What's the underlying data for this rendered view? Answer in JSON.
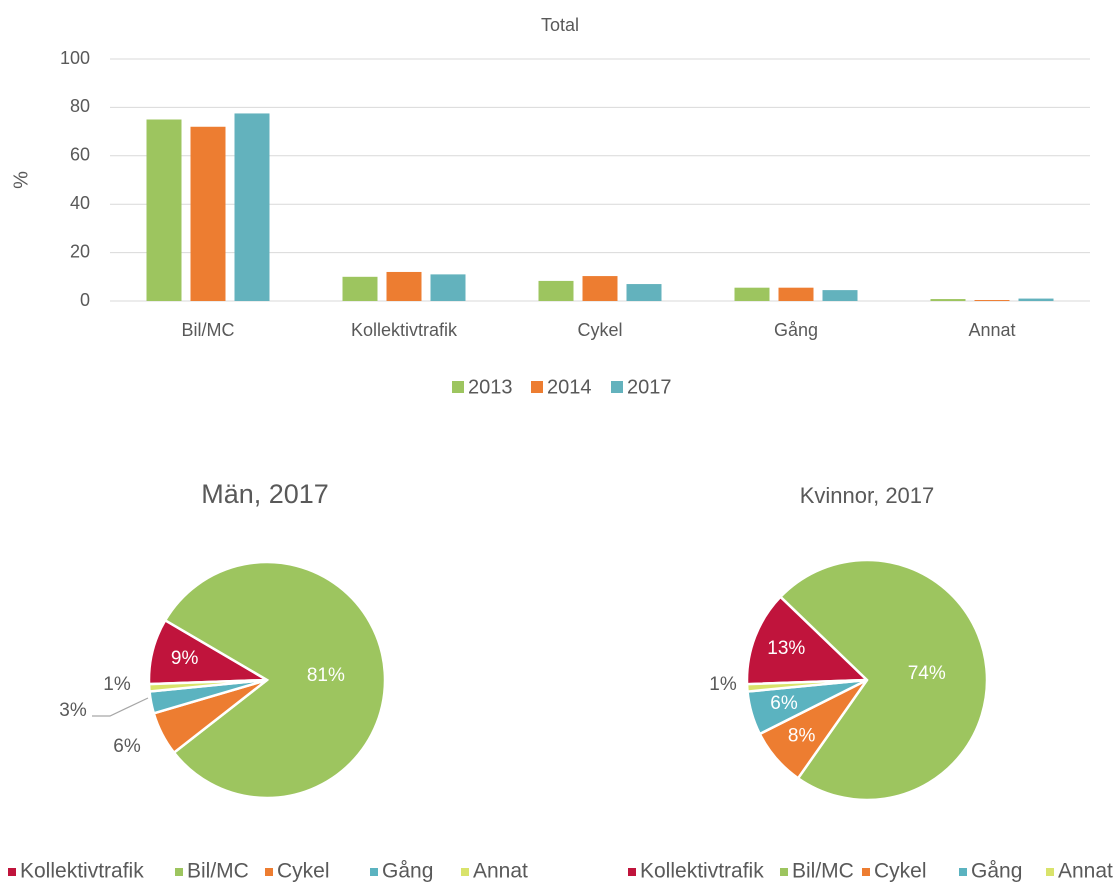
{
  "chart_data": [
    {
      "type": "bar",
      "title": "Total",
      "y_label": "%",
      "categories": [
        "Bil/MC",
        "Kollektivtrafik",
        "Cykel",
        "Gång",
        "Annat"
      ],
      "series": [
        {
          "name": "2013",
          "color": "#9dc55f",
          "values": [
            75,
            10,
            8.3,
            5.5,
            0.8
          ]
        },
        {
          "name": "2014",
          "color": "#ed7d31",
          "values": [
            72,
            12,
            10.3,
            5.5,
            0.4
          ]
        },
        {
          "name": "2017",
          "color": "#63b2bd",
          "values": [
            77.5,
            11,
            7,
            4.5,
            1
          ]
        }
      ],
      "ylim": [
        0,
        100
      ],
      "yticks": [
        0,
        20,
        40,
        60,
        80,
        100
      ],
      "grid": true,
      "legend": "bottom"
    },
    {
      "type": "pie",
      "title": "Män, 2017",
      "categories": [
        "Kollektivtrafik",
        "Bil/MC",
        "Cykel",
        "Gång",
        "Annat"
      ],
      "values": [
        9,
        81,
        6,
        3,
        1
      ],
      "value_labels": [
        "9%",
        "81%",
        "6%",
        "3%",
        "1%"
      ],
      "colors": [
        "#c0143c",
        "#9dc55f",
        "#ed7d31",
        "#5bb3c0",
        "#d9e36b"
      ],
      "legend": "bottom"
    },
    {
      "type": "pie",
      "title": "Kvinnor, 2017",
      "categories": [
        "Kollektivtrafik",
        "Bil/MC",
        "Cykel",
        "Gång",
        "Annat"
      ],
      "values": [
        13,
        74,
        8,
        6,
        1
      ],
      "value_labels": [
        "13%",
        "74%",
        "8%",
        "6%",
        "1%"
      ],
      "colors": [
        "#c0143c",
        "#9dc55f",
        "#ed7d31",
        "#5bb3c0",
        "#d9e36b"
      ],
      "legend": "bottom"
    }
  ]
}
